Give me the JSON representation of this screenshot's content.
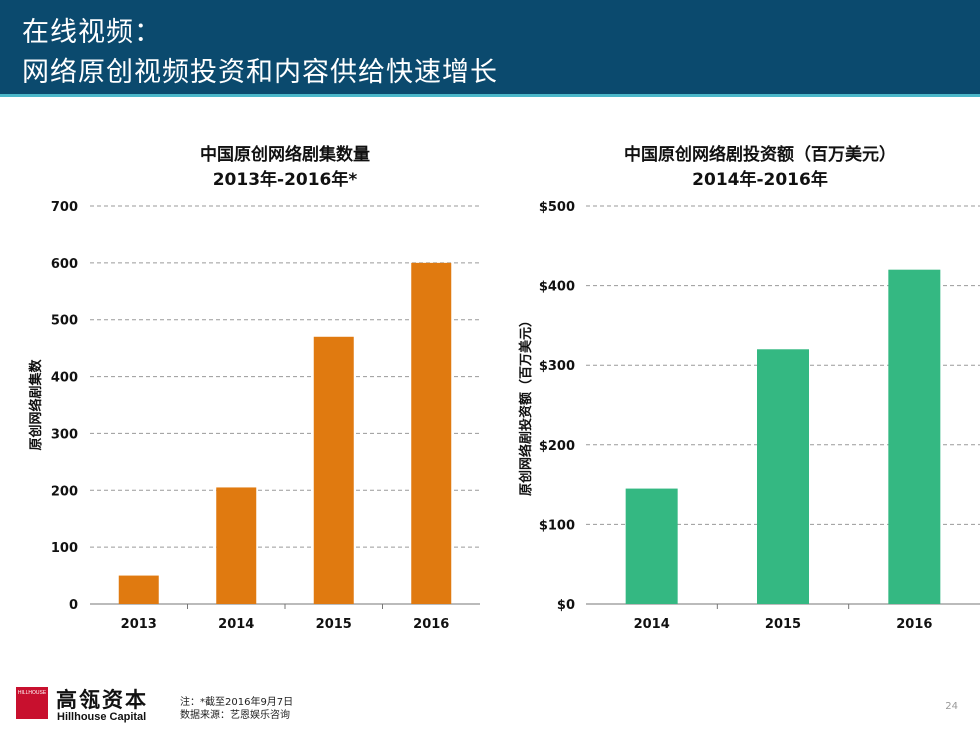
{
  "header": {
    "title_line1": "在线视频：",
    "title_line2": "网络原创视频投资和内容供给快速增长"
  },
  "chart_data": [
    {
      "type": "bar",
      "title": "中国原创网络剧集数量",
      "subtitle": "2013年-2016年*",
      "categories": [
        "2013",
        "2014",
        "2015",
        "2016"
      ],
      "values": [
        50,
        205,
        470,
        600
      ],
      "ylabel": "原创网络剧集数",
      "xlabel": "",
      "ylim": [
        0,
        700
      ],
      "yticks": [
        0,
        100,
        200,
        300,
        400,
        500,
        600,
        700
      ],
      "ytick_labels": [
        "0",
        "100",
        "200",
        "300",
        "400",
        "500",
        "600",
        "700"
      ],
      "color": "#e07a10",
      "grid": true
    },
    {
      "type": "bar",
      "title": "中国原创网络剧投资额（百万美元）",
      "subtitle": "2014年-2016年",
      "categories": [
        "2014",
        "2015",
        "2016"
      ],
      "values": [
        145,
        320,
        420
      ],
      "ylabel": "原创网络剧投资额（百万美元）",
      "xlabel": "",
      "ylim": [
        0,
        500
      ],
      "yticks": [
        0,
        100,
        200,
        300,
        400,
        500
      ],
      "ytick_labels": [
        "$0",
        "$100",
        "$200",
        "$300",
        "$400",
        "$500"
      ],
      "color": "#34b882",
      "grid": true
    }
  ],
  "footer": {
    "logo_tag": "HILLHOUSE",
    "brand_cn": "高瓴资本",
    "brand_en": "Hillhouse Capital",
    "note_line1": "注：*截至2016年9月7日",
    "note_line2": "数据来源：艺恩娱乐咨询",
    "page_number": "24"
  }
}
